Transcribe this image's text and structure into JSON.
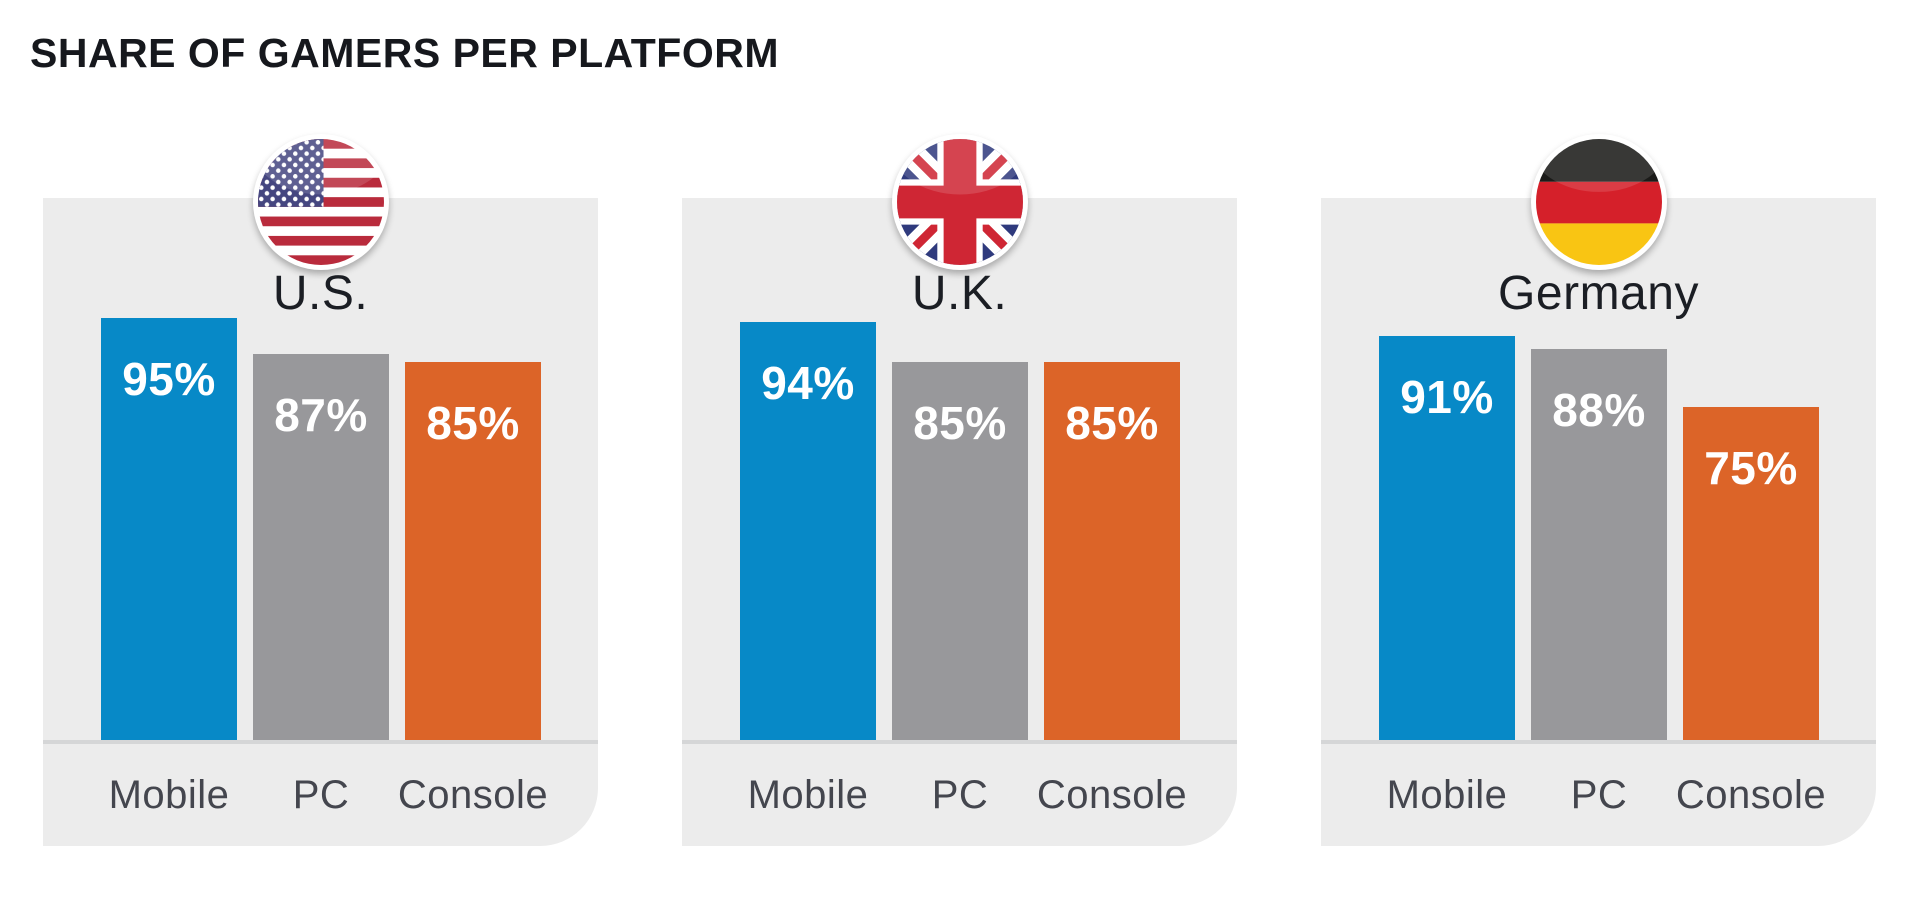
{
  "title": "SHARE OF GAMERS PER PLATFORM",
  "colors": {
    "mobile": "#0789c7",
    "pc": "#98989b",
    "console": "#dc6428",
    "panel_bg": "#ececec",
    "baseline": "#d5d6d7",
    "title_text": "#16181d",
    "country_text": "#1b1e24",
    "axis_text": "#44464e",
    "value_text": "#ffffff"
  },
  "panels": [
    {
      "country": "U.S.",
      "flag": "us",
      "bars": [
        {
          "platform": "Mobile",
          "value": 95,
          "label": "95%"
        },
        {
          "platform": "PC",
          "value": 87,
          "label": "87%"
        },
        {
          "platform": "Console",
          "value": 85,
          "label": "85%"
        }
      ]
    },
    {
      "country": "U.K.",
      "flag": "uk",
      "bars": [
        {
          "platform": "Mobile",
          "value": 94,
          "label": "94%"
        },
        {
          "platform": "PC",
          "value": 85,
          "label": "85%"
        },
        {
          "platform": "Console",
          "value": 85,
          "label": "85%"
        }
      ]
    },
    {
      "country": "Germany",
      "flag": "de",
      "bars": [
        {
          "platform": "Mobile",
          "value": 91,
          "label": "91%"
        },
        {
          "platform": "PC",
          "value": 88,
          "label": "88%"
        },
        {
          "platform": "Console",
          "value": 75,
          "label": "75%"
        }
      ]
    }
  ],
  "chart_data": {
    "type": "bar",
    "title": "SHARE OF GAMERS PER PLATFORM",
    "categories": [
      "Mobile",
      "PC",
      "Console"
    ],
    "series": [
      {
        "name": "U.S.",
        "values": [
          95,
          87,
          85
        ]
      },
      {
        "name": "U.K.",
        "values": [
          94,
          85,
          85
        ]
      },
      {
        "name": "Germany",
        "values": [
          91,
          88,
          75
        ]
      }
    ],
    "unit": "%",
    "ylim": [
      0,
      100
    ],
    "grid": false,
    "legend": "none",
    "value_labels": true,
    "layout": "three small-multiple panels side by side, one per country, circular flag icon centered on each panel top edge, country name under flag, value labels inside bar tops, platform labels under baseline"
  }
}
